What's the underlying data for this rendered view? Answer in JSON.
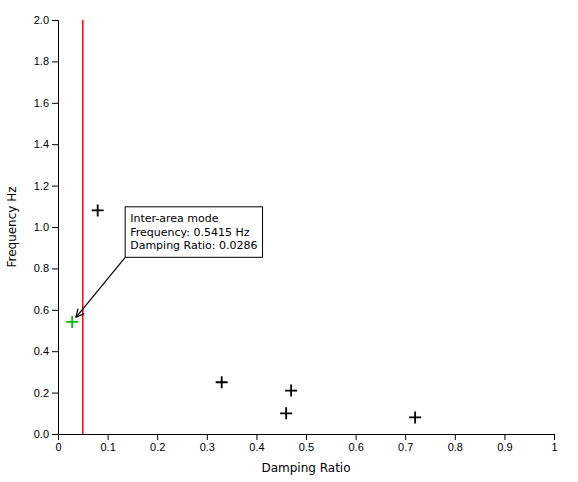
{
  "chart_data": {
    "type": "scatter",
    "xlabel": "Damping Ratio",
    "ylabel": "Frequency Hz",
    "xlim": [
      0,
      1.0
    ],
    "ylim": [
      0,
      2.0
    ],
    "xticks": [
      0,
      0.1,
      0.2,
      0.3,
      0.4,
      0.5,
      0.6,
      0.7,
      0.8,
      0.9,
      1.0
    ],
    "yticks": [
      {
        "value": 0,
        "label": "0.0"
      },
      0.2,
      0.4,
      0.6,
      0.8,
      {
        "value": 1.0,
        "label": "1.0"
      },
      1.2,
      1.4,
      1.6,
      1.8,
      {
        "value": 2.0,
        "label": "2.0"
      }
    ],
    "grid": false,
    "series": [
      {
        "color": "#000000",
        "marker": "plus",
        "x": [
          0.08,
          0.33,
          0.46,
          0.47,
          0.72
        ],
        "values": [
          1.08,
          0.25,
          0.1,
          0.21,
          0.08
        ]
      },
      {
        "color": "#00bb00",
        "marker": "plus",
        "x": [
          0.0286
        ],
        "values": [
          0.5415
        ]
      }
    ],
    "reference_lines": [
      {
        "x": 0.05,
        "color": "#ff0000"
      }
    ],
    "annotations": [
      {
        "text": "Inter-area mode\nFrequency: 0.5415 Hz\nDamping Ratio: 0.0286",
        "x": 0.0286,
        "y": 0.5415
      }
    ]
  }
}
